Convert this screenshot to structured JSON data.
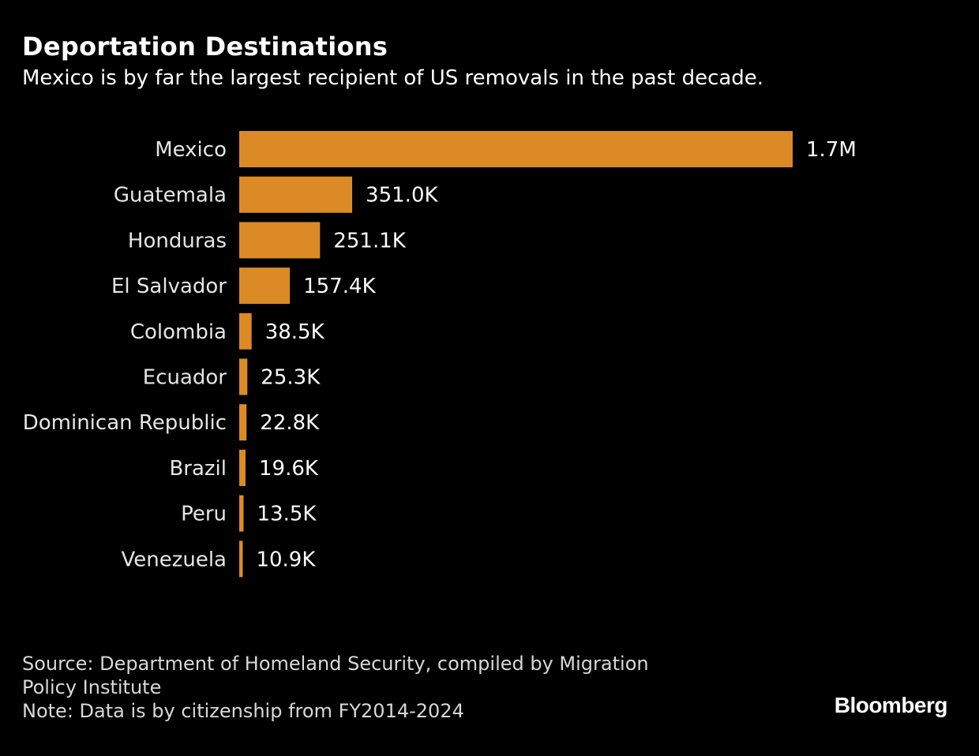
{
  "chart_data": {
    "type": "bar",
    "orientation": "horizontal",
    "title": "Deportation Destinations",
    "subtitle": "Mexico is by far the largest recipient of US removals in the past decade.",
    "categories": [
      "Mexico",
      "Guatemala",
      "Honduras",
      "El Salvador",
      "Colombia",
      "Ecuador",
      "Dominican Republic",
      "Brazil",
      "Peru",
      "Venezuela"
    ],
    "values": [
      1720000,
      351000,
      251100,
      157400,
      38500,
      25300,
      22800,
      19600,
      13500,
      10900
    ],
    "data_labels": [
      "1.7M",
      "351.0K",
      "251.1K",
      "157.4K",
      "38.5K",
      "25.3K",
      "22.8K",
      "19.6K",
      "13.5K",
      "10.9K"
    ],
    "xlabel": "",
    "ylabel": "",
    "grid": false,
    "legend": "none",
    "bar_color": "#DC8A26"
  },
  "footer": {
    "source_line1": "Source: Department of Homeland Security, compiled by Migration",
    "source_line2": "Policy Institute",
    "note": "Note: Data is by citizenship from FY2014-2024"
  },
  "brand": "Bloomberg"
}
